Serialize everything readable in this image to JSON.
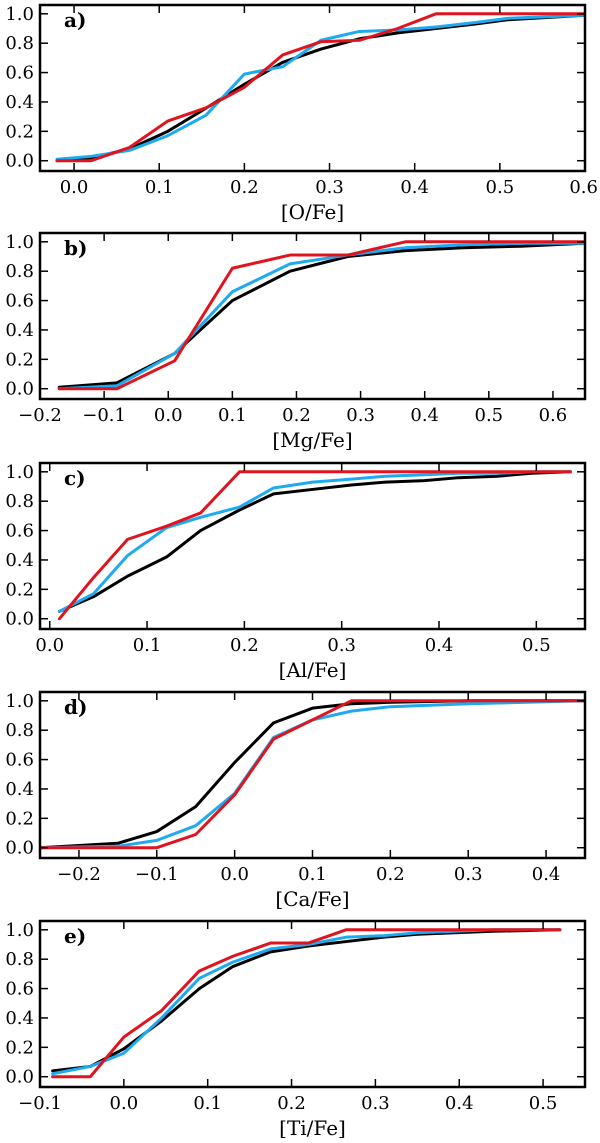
{
  "chart_data": [
    {
      "type": "line",
      "panel_label": "a)",
      "xlabel": "[O/Fe]",
      "ylabel": "",
      "xlim": [
        -0.04,
        0.6
      ],
      "ylim": [
        -0.07,
        1.06
      ],
      "xticks": [
        0.0,
        0.1,
        0.2,
        0.3,
        0.4,
        0.5,
        0.6
      ],
      "xtick_labels": [
        "0.0",
        "0.1",
        "0.2",
        "0.3",
        "0.4",
        "0.5",
        "0.6"
      ],
      "yticks": [
        0.0,
        0.2,
        0.4,
        0.6,
        0.8,
        1.0
      ],
      "ytick_labels": [
        "0.0",
        "0.2",
        "0.4",
        "0.6",
        "0.8",
        "1.0"
      ],
      "series": [
        {
          "name": "black",
          "color": "#000000",
          "x": [
            -0.02,
            0.02,
            0.065,
            0.11,
            0.15,
            0.2,
            0.245,
            0.29,
            0.335,
            0.38,
            0.425,
            0.47,
            0.51,
            0.6
          ],
          "y": [
            0.0,
            0.02,
            0.08,
            0.2,
            0.34,
            0.52,
            0.67,
            0.76,
            0.83,
            0.87,
            0.9,
            0.93,
            0.96,
            0.99
          ]
        },
        {
          "name": "blue",
          "color": "#1eaaf0",
          "x": [
            -0.02,
            0.02,
            0.065,
            0.11,
            0.155,
            0.2,
            0.245,
            0.29,
            0.335,
            0.38,
            0.425,
            0.47,
            0.51,
            0.6
          ],
          "y": [
            0.01,
            0.03,
            0.07,
            0.17,
            0.31,
            0.59,
            0.64,
            0.82,
            0.88,
            0.89,
            0.91,
            0.94,
            0.97,
            0.99
          ]
        },
        {
          "name": "red",
          "color": "#e0141e",
          "x": [
            -0.02,
            0.02,
            0.065,
            0.11,
            0.155,
            0.2,
            0.245,
            0.29,
            0.335,
            0.38,
            0.425,
            0.6
          ],
          "y": [
            0.0,
            0.0,
            0.09,
            0.27,
            0.36,
            0.5,
            0.72,
            0.81,
            0.82,
            0.9,
            1.0,
            1.0
          ]
        }
      ]
    },
    {
      "type": "line",
      "panel_label": "b)",
      "xlabel": "[Mg/Fe]",
      "ylabel": "",
      "xlim": [
        -0.2,
        0.65
      ],
      "ylim": [
        -0.07,
        1.06
      ],
      "xticks": [
        -0.2,
        -0.1,
        0.0,
        0.1,
        0.2,
        0.3,
        0.4,
        0.5,
        0.6
      ],
      "xtick_labels": [
        "−0.2",
        "−0.1",
        "0.0",
        "0.1",
        "0.2",
        "0.3",
        "0.4",
        "0.5",
        "0.6"
      ],
      "yticks": [
        0.0,
        0.2,
        0.4,
        0.6,
        0.8,
        1.0
      ],
      "ytick_labels": [
        "0.0",
        "0.2",
        "0.4",
        "0.6",
        "0.8",
        "1.0"
      ],
      "series": [
        {
          "name": "black",
          "color": "#000000",
          "x": [
            -0.17,
            -0.08,
            0.01,
            0.1,
            0.19,
            0.28,
            0.37,
            0.46,
            0.55,
            0.65
          ],
          "y": [
            0.01,
            0.04,
            0.24,
            0.6,
            0.8,
            0.9,
            0.94,
            0.96,
            0.97,
            0.99
          ]
        },
        {
          "name": "blue",
          "color": "#1eaaf0",
          "x": [
            -0.17,
            -0.08,
            0.01,
            0.1,
            0.19,
            0.28,
            0.37,
            0.46,
            0.55,
            0.65
          ],
          "y": [
            0.0,
            0.02,
            0.24,
            0.66,
            0.85,
            0.91,
            0.96,
            0.98,
            0.99,
            0.99
          ]
        },
        {
          "name": "red",
          "color": "#e0141e",
          "x": [
            -0.17,
            -0.08,
            0.01,
            0.1,
            0.19,
            0.28,
            0.37,
            0.46,
            0.55,
            0.65
          ],
          "y": [
            0.0,
            0.0,
            0.19,
            0.82,
            0.91,
            0.91,
            1.0,
            1.0,
            1.0,
            1.0
          ]
        }
      ]
    },
    {
      "type": "line",
      "panel_label": "c)",
      "xlabel": "[Al/Fe]",
      "ylabel": "",
      "xlim": [
        -0.01,
        0.55
      ],
      "ylim": [
        -0.07,
        1.06
      ],
      "xticks": [
        0.0,
        0.1,
        0.2,
        0.3,
        0.4,
        0.5
      ],
      "xtick_labels": [
        "0.0",
        "0.1",
        "0.2",
        "0.3",
        "0.4",
        "0.5"
      ],
      "yticks": [
        0.0,
        0.2,
        0.4,
        0.6,
        0.8,
        1.0
      ],
      "ytick_labels": [
        "0.0",
        "0.2",
        "0.4",
        "0.6",
        "0.8",
        "1.0"
      ],
      "series": [
        {
          "name": "black",
          "color": "#000000",
          "x": [
            0.01,
            0.045,
            0.08,
            0.12,
            0.155,
            0.195,
            0.23,
            0.27,
            0.31,
            0.345,
            0.385,
            0.42,
            0.46,
            0.495,
            0.535
          ],
          "y": [
            0.05,
            0.15,
            0.29,
            0.42,
            0.6,
            0.74,
            0.85,
            0.88,
            0.91,
            0.93,
            0.94,
            0.96,
            0.97,
            0.99,
            1.0
          ]
        },
        {
          "name": "blue",
          "color": "#1eaaf0",
          "x": [
            0.01,
            0.045,
            0.08,
            0.12,
            0.155,
            0.195,
            0.23,
            0.27,
            0.31,
            0.345,
            0.385,
            0.42,
            0.46,
            0.495,
            0.535
          ],
          "y": [
            0.05,
            0.17,
            0.43,
            0.62,
            0.69,
            0.76,
            0.89,
            0.93,
            0.95,
            0.97,
            0.98,
            0.99,
            0.99,
            1.0,
            1.0
          ]
        },
        {
          "name": "red",
          "color": "#e0141e",
          "x": [
            0.01,
            0.045,
            0.08,
            0.12,
            0.155,
            0.195,
            0.535
          ],
          "y": [
            0.0,
            0.28,
            0.54,
            0.63,
            0.72,
            1.0,
            1.0
          ]
        }
      ]
    },
    {
      "type": "line",
      "panel_label": "d)",
      "xlabel": "[Ca/Fe]",
      "ylabel": "",
      "xlim": [
        -0.25,
        0.45
      ],
      "ylim": [
        -0.07,
        1.06
      ],
      "xticks": [
        -0.2,
        -0.1,
        0.0,
        0.1,
        0.2,
        0.3,
        0.4
      ],
      "xtick_labels": [
        "−0.2",
        "−0.1",
        "0.0",
        "0.1",
        "0.2",
        "0.3",
        "0.4"
      ],
      "yticks": [
        0.0,
        0.2,
        0.4,
        0.6,
        0.8,
        1.0
      ],
      "ytick_labels": [
        "0.0",
        "0.2",
        "0.4",
        "0.6",
        "0.8",
        "1.0"
      ],
      "series": [
        {
          "name": "black",
          "color": "#000000",
          "x": [
            -0.25,
            -0.15,
            -0.1,
            -0.05,
            0.0,
            0.05,
            0.1,
            0.15,
            0.2,
            0.3,
            0.45
          ],
          "y": [
            0.0,
            0.03,
            0.11,
            0.28,
            0.58,
            0.85,
            0.95,
            0.98,
            0.99,
            1.0,
            1.0
          ]
        },
        {
          "name": "blue",
          "color": "#1eaaf0",
          "x": [
            -0.25,
            -0.15,
            -0.1,
            -0.05,
            0.0,
            0.05,
            0.1,
            0.15,
            0.2,
            0.3,
            0.45
          ],
          "y": [
            0.0,
            0.01,
            0.05,
            0.15,
            0.37,
            0.75,
            0.87,
            0.93,
            0.96,
            0.98,
            1.0
          ]
        },
        {
          "name": "red",
          "color": "#e0141e",
          "x": [
            -0.25,
            -0.1,
            -0.05,
            0.0,
            0.05,
            0.15,
            0.45
          ],
          "y": [
            0.0,
            0.0,
            0.09,
            0.36,
            0.74,
            1.0,
            1.0
          ]
        }
      ]
    },
    {
      "type": "line",
      "panel_label": "e)",
      "xlabel": "[Ti/Fe]",
      "ylabel": "",
      "xlim": [
        -0.1,
        0.55
      ],
      "ylim": [
        -0.07,
        1.06
      ],
      "xticks": [
        -0.1,
        0.0,
        0.1,
        0.2,
        0.3,
        0.4,
        0.5
      ],
      "xtick_labels": [
        "−0.1",
        "0.0",
        "0.1",
        "0.2",
        "0.3",
        "0.4",
        "0.5"
      ],
      "yticks": [
        0.0,
        0.2,
        0.4,
        0.6,
        0.8,
        1.0
      ],
      "ytick_labels": [
        "0.0",
        "0.2",
        "0.4",
        "0.6",
        "0.8",
        "1.0"
      ],
      "series": [
        {
          "name": "black",
          "color": "#000000",
          "x": [
            -0.085,
            -0.04,
            0.0,
            0.045,
            0.09,
            0.13,
            0.175,
            0.22,
            0.265,
            0.31,
            0.35,
            0.395,
            0.44,
            0.52
          ],
          "y": [
            0.04,
            0.07,
            0.19,
            0.38,
            0.6,
            0.75,
            0.85,
            0.89,
            0.92,
            0.95,
            0.97,
            0.98,
            0.99,
            1.0
          ]
        },
        {
          "name": "blue",
          "color": "#1eaaf0",
          "x": [
            -0.085,
            -0.04,
            0.0,
            0.045,
            0.09,
            0.13,
            0.175,
            0.22,
            0.265,
            0.31,
            0.35,
            0.395,
            0.44,
            0.52
          ],
          "y": [
            0.02,
            0.07,
            0.16,
            0.4,
            0.67,
            0.78,
            0.87,
            0.9,
            0.95,
            0.96,
            0.98,
            0.99,
            1.0,
            1.0
          ]
        },
        {
          "name": "red",
          "color": "#e0141e",
          "x": [
            -0.085,
            -0.04,
            0.0,
            0.045,
            0.09,
            0.13,
            0.175,
            0.22,
            0.265,
            0.52
          ],
          "y": [
            0.0,
            0.0,
            0.27,
            0.45,
            0.72,
            0.82,
            0.91,
            0.91,
            1.0,
            1.0
          ]
        }
      ]
    }
  ]
}
